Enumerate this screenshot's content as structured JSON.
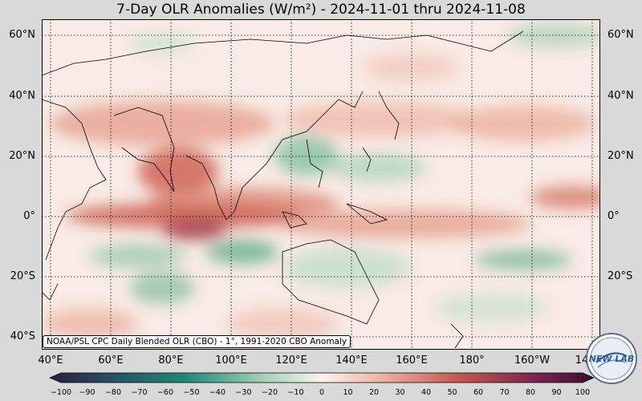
{
  "title": "7-Day OLR Anomalies (W/m²) - 2024-11-01 thru 2024-11-08",
  "lat_labels": [
    "60°N",
    "40°N",
    "20°N",
    "0°",
    "20°S",
    "40°S"
  ],
  "lat_right_labels": [
    "60°N",
    "40°N",
    "20°N",
    "0°",
    "20°S"
  ],
  "lon_labels": [
    "40°E",
    "60°E",
    "80°E",
    "100°E",
    "120°E",
    "140°E",
    "160°E",
    "180°",
    "160°W",
    "14"
  ],
  "credit": "NOAA/PSL CPC Daily Blended OLR (CBO) - 1°, 1991-2020 CBO Anomaly",
  "colorbar": {
    "ticks": [
      "−100",
      "−90",
      "−80",
      "−70",
      "−60",
      "−50",
      "−40",
      "−30",
      "−20",
      "−10",
      "0",
      "10",
      "20",
      "30",
      "40",
      "50",
      "60",
      "70",
      "80",
      "90",
      "100"
    ],
    "colors": {
      "neg_max": "#2e1d3b",
      "neg_mid": "#1f8a78",
      "neg_low": "#a9d3b9",
      "zero": "#fbf3ee",
      "pos_low": "#f0b8a8",
      "pos_mid": "#c7584e",
      "pos_max": "#3b0f2c"
    }
  },
  "logo_text": "NEW LAB",
  "map_colors": {
    "ocean": "#f6e4dc",
    "land_outline": "#000000",
    "grid": "#000000"
  }
}
